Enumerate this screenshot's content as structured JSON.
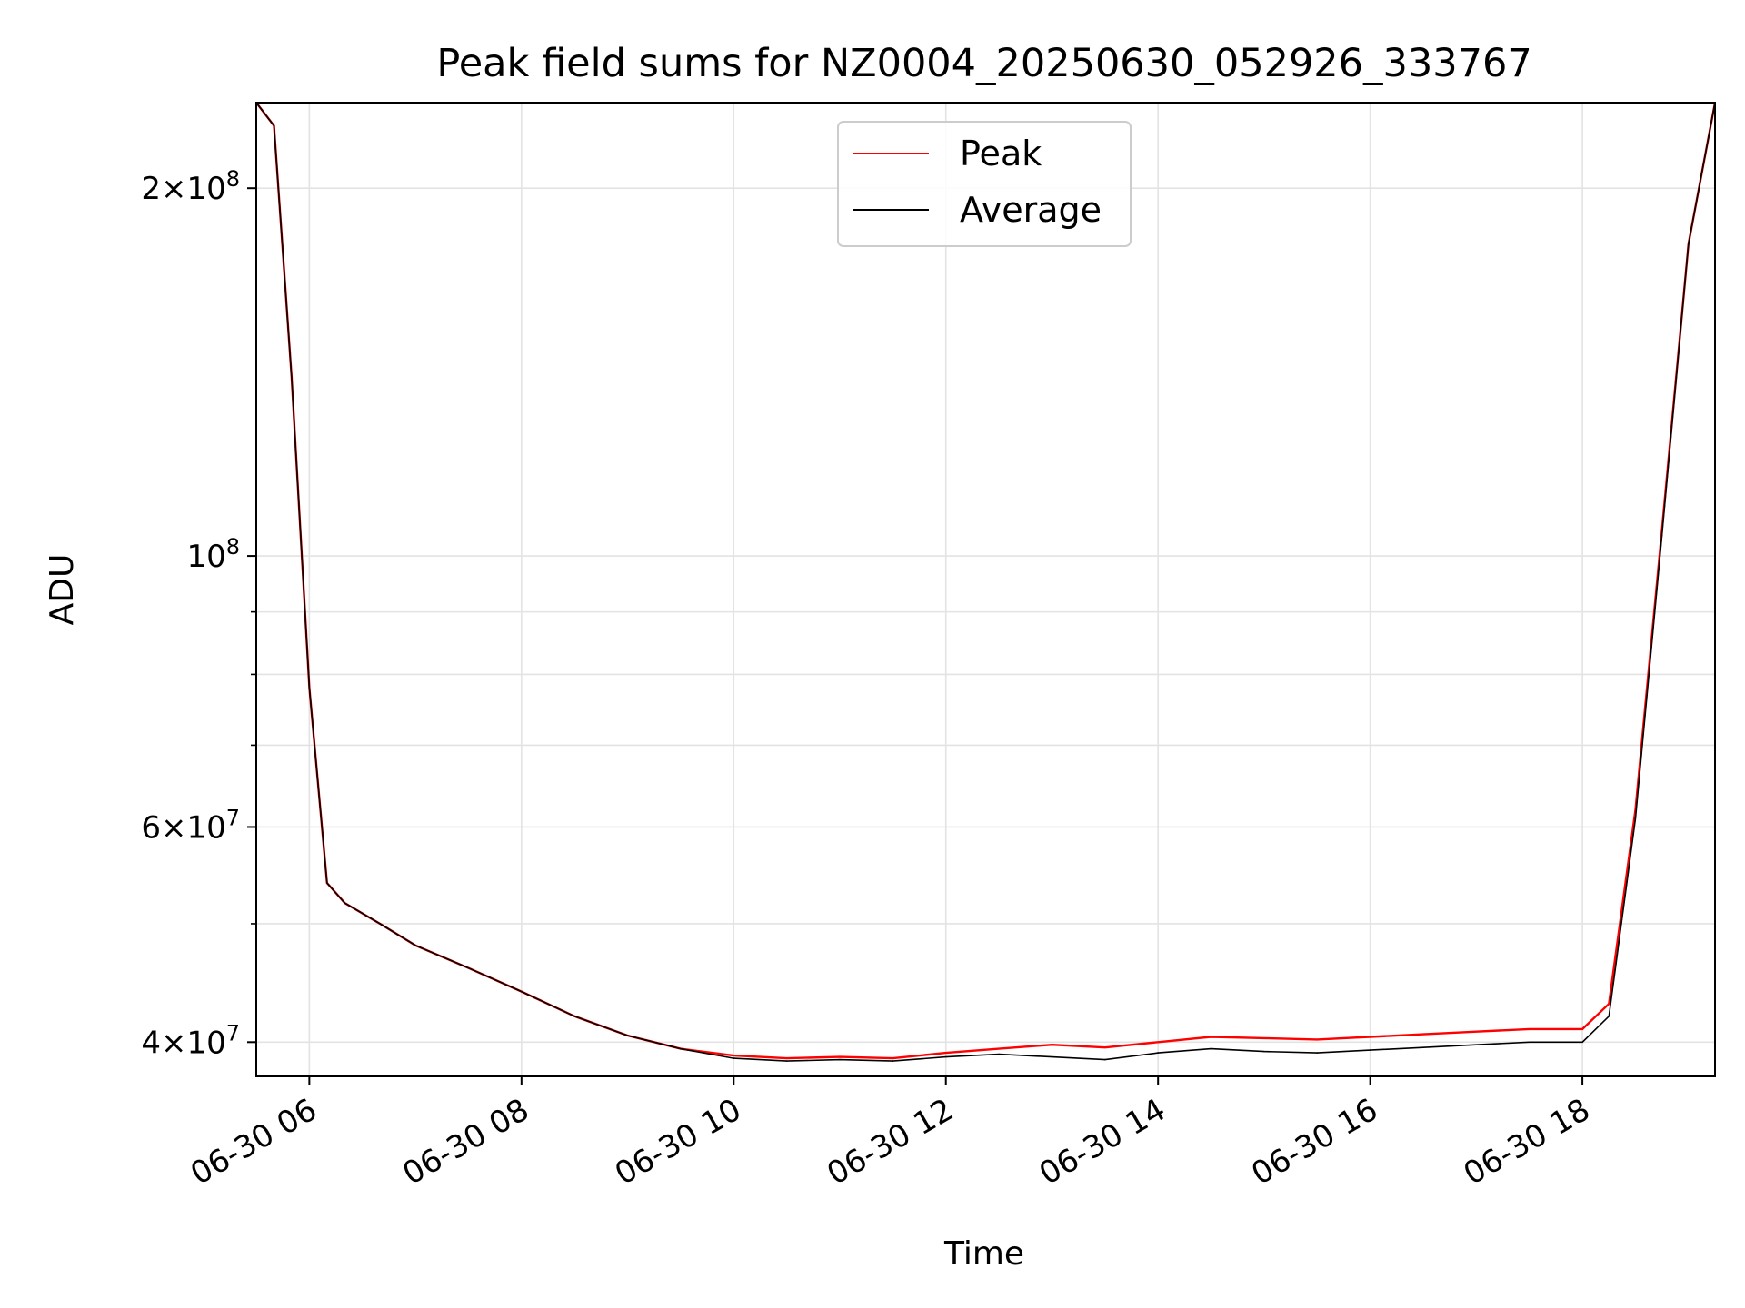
{
  "chart_data": {
    "type": "line",
    "title": "Peak field sums for NZ0004_20250630_052926_333767",
    "xlabel": "Time",
    "ylabel": "ADU",
    "yscale": "log",
    "grid": true,
    "legend_position": "top-center",
    "xlim": [
      "2025-06-30 05:30",
      "2025-06-30 19:15"
    ],
    "ylim": [
      37500000,
      235000000
    ],
    "x_ticks": [
      {
        "value": "2025-06-30 06:00",
        "label": "06-30 06"
      },
      {
        "value": "2025-06-30 08:00",
        "label": "06-30 08"
      },
      {
        "value": "2025-06-30 10:00",
        "label": "06-30 10"
      },
      {
        "value": "2025-06-30 12:00",
        "label": "06-30 12"
      },
      {
        "value": "2025-06-30 14:00",
        "label": "06-30 14"
      },
      {
        "value": "2025-06-30 16:00",
        "label": "06-30 16"
      },
      {
        "value": "2025-06-30 18:00",
        "label": "06-30 18"
      }
    ],
    "y_ticks": [
      {
        "value": 40000000,
        "mant": "4",
        "exp": "7"
      },
      {
        "value": 60000000,
        "mant": "6",
        "exp": "7"
      },
      {
        "value": 100000000,
        "mant": "",
        "exp": "8"
      },
      {
        "value": 200000000,
        "mant": "2",
        "exp": "8"
      }
    ],
    "series": [
      {
        "name": "Peak",
        "color": "#ff0000",
        "x": [
          "2025-06-30 05:30",
          "2025-06-30 05:40",
          "2025-06-30 05:50",
          "2025-06-30 06:00",
          "2025-06-30 06:10",
          "2025-06-30 06:20",
          "2025-06-30 06:40",
          "2025-06-30 07:00",
          "2025-06-30 07:30",
          "2025-06-30 08:00",
          "2025-06-30 08:30",
          "2025-06-30 09:00",
          "2025-06-30 09:30",
          "2025-06-30 10:00",
          "2025-06-30 10:30",
          "2025-06-30 11:00",
          "2025-06-30 11:30",
          "2025-06-30 12:00",
          "2025-06-30 12:30",
          "2025-06-30 13:00",
          "2025-06-30 13:30",
          "2025-06-30 14:00",
          "2025-06-30 14:30",
          "2025-06-30 15:00",
          "2025-06-30 15:30",
          "2025-06-30 16:00",
          "2025-06-30 16:30",
          "2025-06-30 17:00",
          "2025-06-30 17:30",
          "2025-06-30 18:00",
          "2025-06-30 18:15",
          "2025-06-30 18:30",
          "2025-06-30 18:45",
          "2025-06-30 19:00",
          "2025-06-30 19:15"
        ],
        "y": [
          235000000,
          225000000,
          140000000,
          78000000,
          54000000,
          52000000,
          50000000,
          48000000,
          46000000,
          44000000,
          42000000,
          40500000,
          39500000,
          39000000,
          38800000,
          38900000,
          38800000,
          39200000,
          39500000,
          39800000,
          39600000,
          40000000,
          40400000,
          40300000,
          40200000,
          40400000,
          40600000,
          40800000,
          41000000,
          41000000,
          43000000,
          62000000,
          105000000,
          180000000,
          235000000
        ]
      },
      {
        "name": "Average",
        "color": "#000000",
        "x": [
          "2025-06-30 05:30",
          "2025-06-30 05:40",
          "2025-06-30 05:50",
          "2025-06-30 06:00",
          "2025-06-30 06:10",
          "2025-06-30 06:20",
          "2025-06-30 06:40",
          "2025-06-30 07:00",
          "2025-06-30 07:30",
          "2025-06-30 08:00",
          "2025-06-30 08:30",
          "2025-06-30 09:00",
          "2025-06-30 09:30",
          "2025-06-30 10:00",
          "2025-06-30 10:30",
          "2025-06-30 11:00",
          "2025-06-30 11:30",
          "2025-06-30 12:00",
          "2025-06-30 12:30",
          "2025-06-30 13:00",
          "2025-06-30 13:30",
          "2025-06-30 14:00",
          "2025-06-30 14:30",
          "2025-06-30 15:00",
          "2025-06-30 15:30",
          "2025-06-30 16:00",
          "2025-06-30 16:30",
          "2025-06-30 17:00",
          "2025-06-30 17:30",
          "2025-06-30 18:00",
          "2025-06-30 18:15",
          "2025-06-30 18:30",
          "2025-06-30 18:45",
          "2025-06-30 19:00",
          "2025-06-30 19:15"
        ],
        "y": [
          235000000,
          225000000,
          140000000,
          78000000,
          54000000,
          52000000,
          50000000,
          48000000,
          46000000,
          44000000,
          42000000,
          40500000,
          39500000,
          38800000,
          38600000,
          38700000,
          38600000,
          38900000,
          39100000,
          38900000,
          38700000,
          39200000,
          39500000,
          39300000,
          39200000,
          39400000,
          39600000,
          39800000,
          40000000,
          40000000,
          42000000,
          61000000,
          104000000,
          180000000,
          235000000
        ]
      }
    ]
  }
}
